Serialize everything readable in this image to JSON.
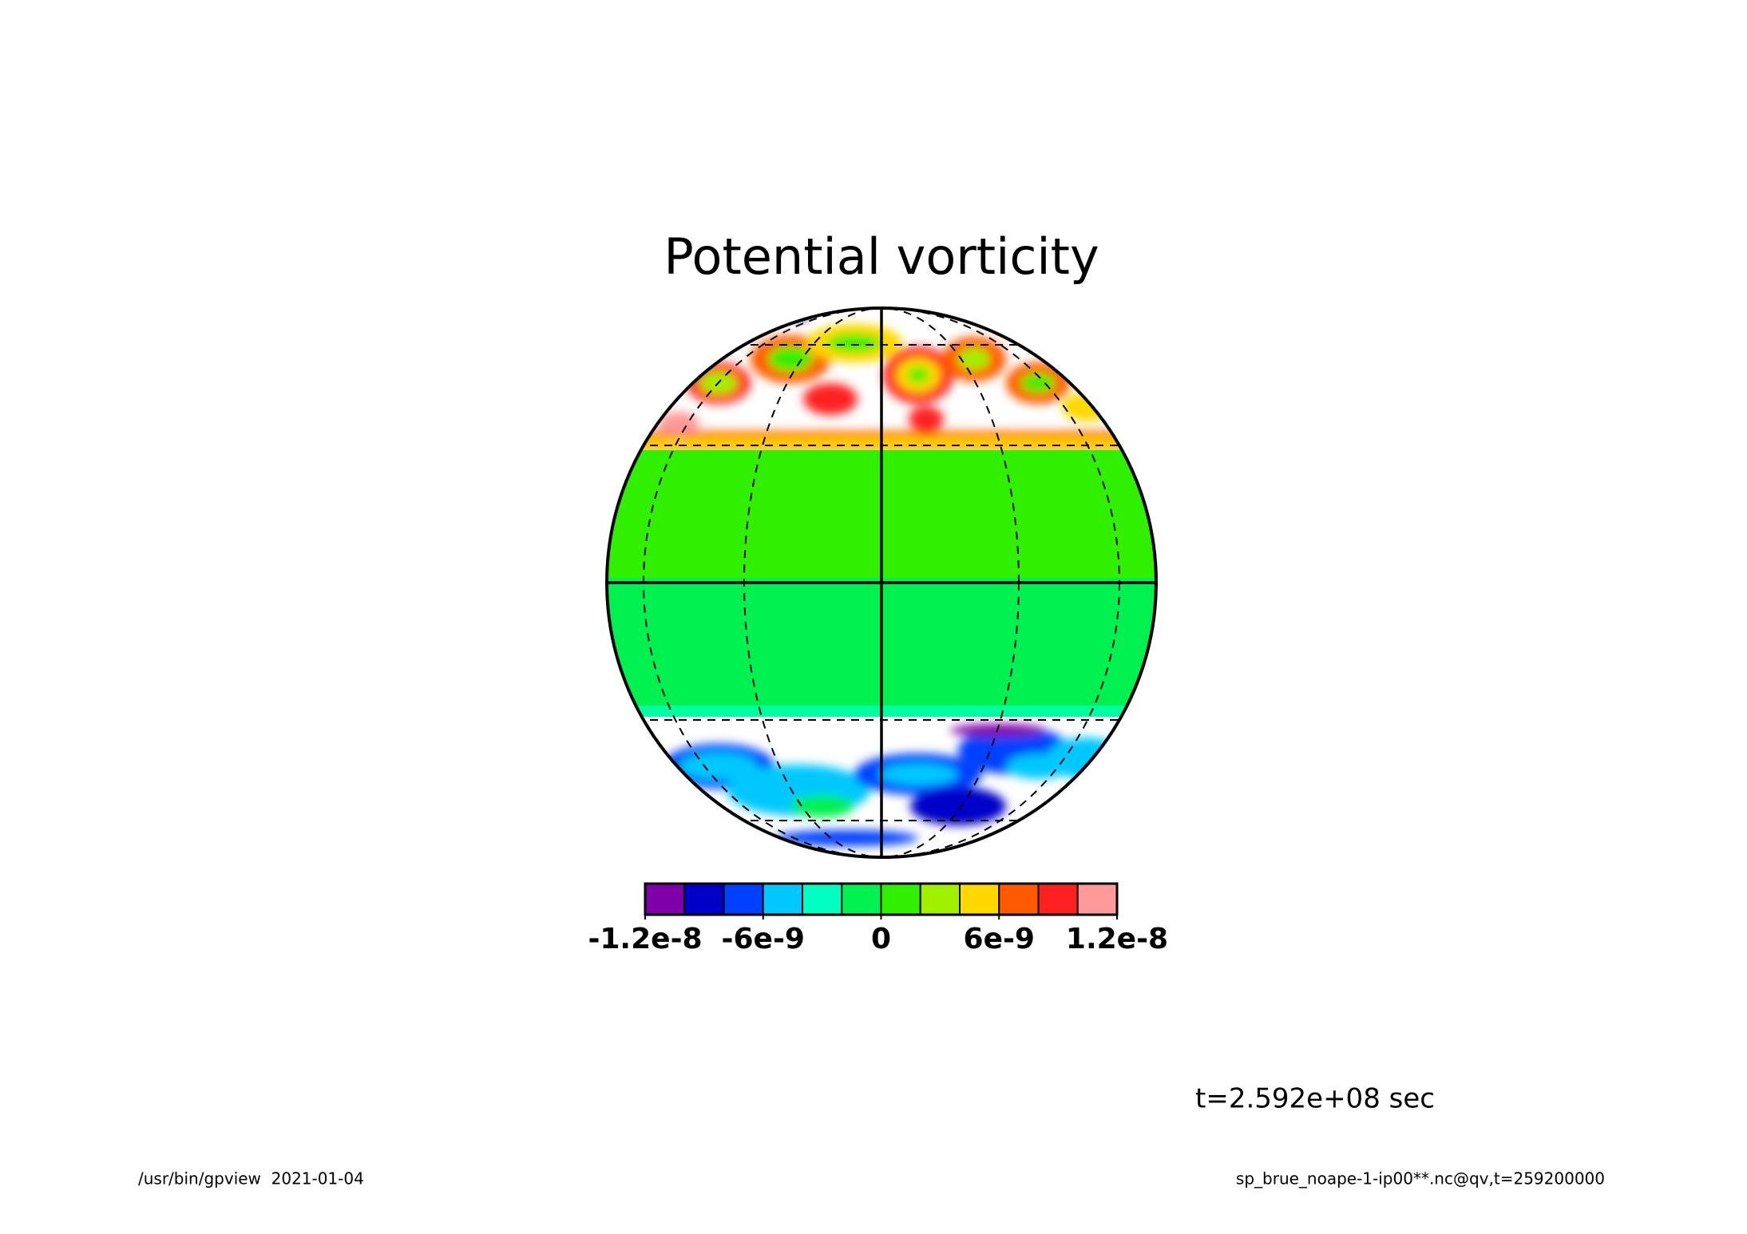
{
  "chart_data": {
    "type": "contour",
    "title": "Potential vorticity",
    "colorbar": {
      "bins": [
        -1.2e-08,
        -1e-08,
        -8e-09,
        -6e-09,
        -4e-09,
        -2e-09,
        0,
        2e-09,
        4e-09,
        6e-09,
        8e-09,
        1e-08,
        1.2e-08
      ],
      "colors": [
        "#7f00a8",
        "#0000c8",
        "#0040ff",
        "#00c8ff",
        "#00ffc0",
        "#00f050",
        "#30f000",
        "#a0f000",
        "#ffd800",
        "#ff5a00",
        "#ff2020",
        "#ff9a9a"
      ],
      "ticks": [
        -1.2e-08,
        -6e-09,
        0,
        6e-09,
        1.2e-08
      ]
    },
    "annotations": {
      "time": "t=2.592e+08 sec",
      "footer_left": "/usr/bin/gpview  2021-01-04",
      "footer_right": "sp_brue_noape-1-ip00**.nc@qv,t=259200000"
    }
  }
}
